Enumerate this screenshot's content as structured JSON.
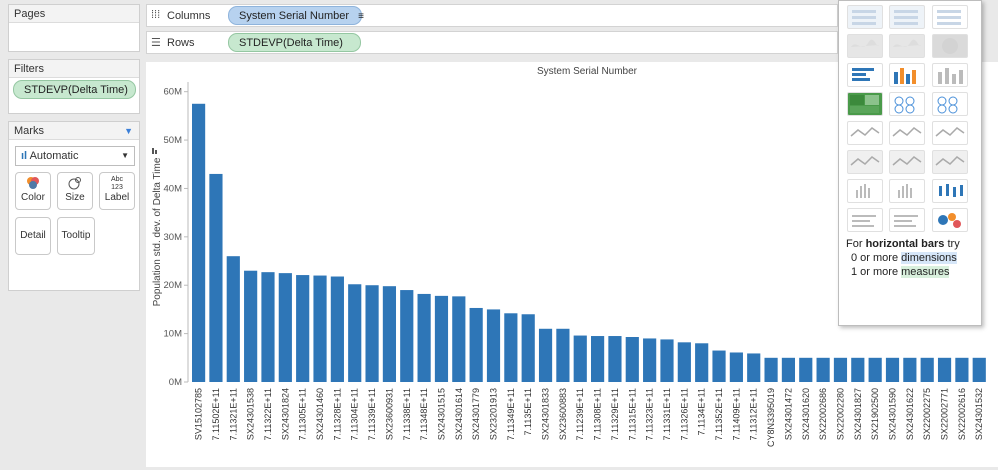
{
  "panels": {
    "pages_title": "Pages",
    "filters_title": "Filters",
    "filter_pill": "STDEVP(Delta Time)",
    "marks_title": "Marks",
    "marks_type": "Automatic",
    "marks_buttons": {
      "color": "Color",
      "size": "Size",
      "label": "Label",
      "detail": "Detail",
      "tooltip": "Tooltip"
    },
    "label_icon_text": "Abc 123"
  },
  "shelves": {
    "columns_label": "Columns",
    "columns_pill": "System Serial Number",
    "rows_label": "Rows",
    "rows_pill": "STDEVP(Delta Time)"
  },
  "showme": {
    "hint_prefix": "For",
    "hint_bold": "horizontal bars",
    "hint_suffix": "try",
    "line2_prefix": "0 or more",
    "line2_highlight": "dimensions",
    "line3_prefix": "1 or more",
    "line3_highlight": "measures",
    "selected_thumb": "horizontal-bars"
  },
  "chart_data": {
    "type": "bar",
    "title": "System Serial Number",
    "xlabel": "",
    "ylabel": "Population std. dev. of Delta Time",
    "ylim": [
      0,
      62000000
    ],
    "yticks": [
      0,
      10000000,
      20000000,
      30000000,
      40000000,
      50000000,
      60000000
    ],
    "ytick_labels": [
      "0M",
      "10M",
      "20M",
      "30M",
      "40M",
      "50M",
      "60M"
    ],
    "bar_color": "#2e76b7",
    "categories": [
      "SV15102785",
      "7.11502E+11",
      "7.11321E+11",
      "SX24301538",
      "7.11322E+11",
      "SX24301824",
      "7.11305E+11",
      "SX24301460",
      "7.11328E+11",
      "7.11304E+11",
      "7.11339E+11",
      "SX23600931",
      "7.11338E+11",
      "7.11348E+11",
      "SX24301515",
      "SX24301614",
      "SX24301779",
      "SX23201913",
      "7.11349E+11",
      "7.1135E+11",
      "SX24301833",
      "SX23600883",
      "7.11239E+11",
      "7.11308E+11",
      "7.11329E+11",
      "7.11315E+11",
      "7.11323E+11",
      "7.11331E+11",
      "7.11326E+11",
      "7.1134E+11",
      "7.11352E+11",
      "7.11409E+11",
      "7.11312E+11",
      "CY8N3395019",
      "SX24301472",
      "SX24301620",
      "SX22002686",
      "SX22002280",
      "SX24301827",
      "SX21902500",
      "SX24301590",
      "SX24301622",
      "SX22002275",
      "SX22002771",
      "SX22002616",
      "SX24301532"
    ],
    "values": [
      57.5,
      43,
      26,
      23,
      22.7,
      22.5,
      22.1,
      22.0,
      21.8,
      20.2,
      20.0,
      19.8,
      19.0,
      18.2,
      17.8,
      17.7,
      15.3,
      15.0,
      14.2,
      14.0,
      11.0,
      11.0,
      9.6,
      9.5,
      9.5,
      9.3,
      9.0,
      8.8,
      8.2,
      8.0,
      6.5,
      6.1,
      5.9,
      5.0,
      5.0,
      5.0,
      5.0,
      5.0,
      5.0,
      5.0,
      5.0,
      5.0,
      5.0,
      5.0,
      5.0,
      5.0
    ],
    "value_unit": "M"
  }
}
